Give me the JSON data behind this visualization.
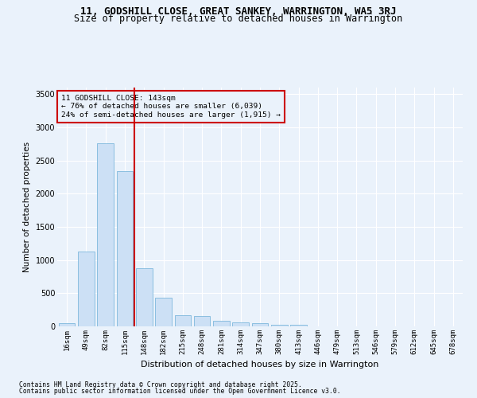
{
  "title1": "11, GODSHILL CLOSE, GREAT SANKEY, WARRINGTON, WA5 3RJ",
  "title2": "Size of property relative to detached houses in Warrington",
  "xlabel": "Distribution of detached houses by size in Warrington",
  "ylabel": "Number of detached properties",
  "categories": [
    "16sqm",
    "49sqm",
    "82sqm",
    "115sqm",
    "148sqm",
    "182sqm",
    "215sqm",
    "248sqm",
    "281sqm",
    "314sqm",
    "347sqm",
    "380sqm",
    "413sqm",
    "446sqm",
    "479sqm",
    "513sqm",
    "546sqm",
    "579sqm",
    "612sqm",
    "645sqm",
    "678sqm"
  ],
  "values": [
    50,
    1130,
    2760,
    2340,
    880,
    430,
    165,
    155,
    80,
    55,
    45,
    30,
    25,
    0,
    0,
    0,
    0,
    0,
    0,
    0,
    0
  ],
  "bar_color": "#cce0f5",
  "bar_edge_color": "#6baed6",
  "vline_x_index": 4,
  "vline_color": "#cc0000",
  "annotation_title": "11 GODSHILL CLOSE: 143sqm",
  "annotation_line1": "← 76% of detached houses are smaller (6,039)",
  "annotation_line2": "24% of semi-detached houses are larger (1,915) →",
  "annotation_box_color": "#cc0000",
  "ylim": [
    0,
    3600
  ],
  "yticks": [
    0,
    500,
    1000,
    1500,
    2000,
    2500,
    3000,
    3500
  ],
  "footer1": "Contains HM Land Registry data © Crown copyright and database right 2025.",
  "footer2": "Contains public sector information licensed under the Open Government Licence v3.0.",
  "bg_color": "#eaf2fb",
  "grid_color": "#ffffff",
  "title1_fontsize": 9,
  "title2_fontsize": 8.5,
  "bar_width": 0.85
}
